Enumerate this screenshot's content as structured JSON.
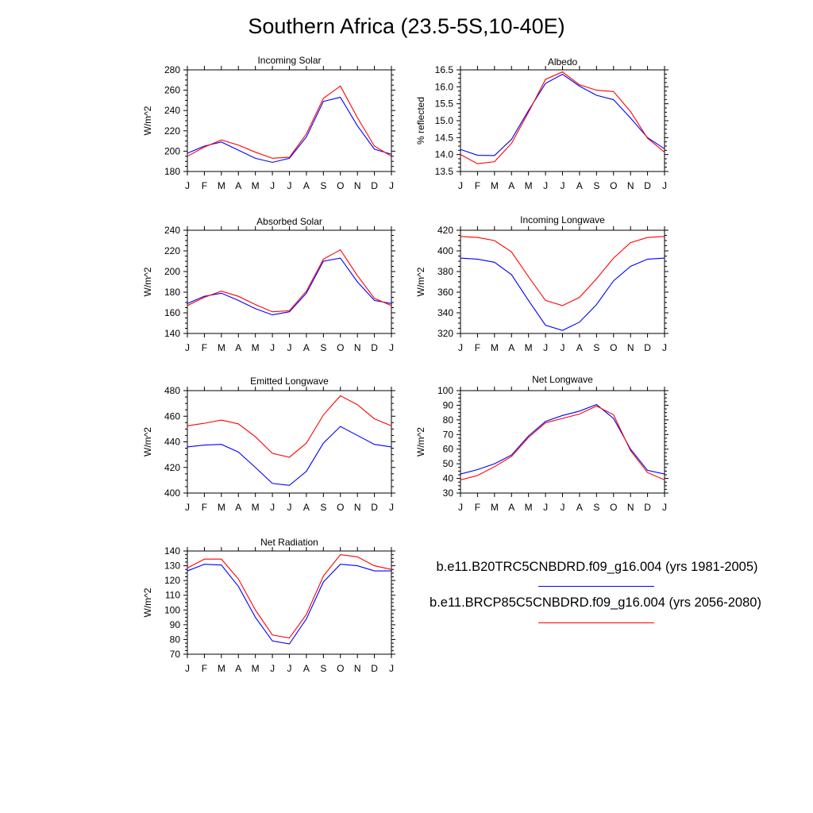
{
  "title": "Southern Africa (23.5-5S,10-40E)",
  "colors": {
    "series_1": "#0000ff",
    "series_2": "#ff0000"
  },
  "legend": {
    "series_1": "b.e11.B20TRC5CNBDRD.f09_g16.004 (yrs 1981-2005)",
    "series_2": "b.e11.BRCP85C5CNBDRD.f09_g16.004 (yrs 2056-2080)"
  },
  "chart_data": [
    {
      "type": "line",
      "title": "Incoming Solar",
      "ylabel": "W/m^2",
      "categories": [
        "J",
        "F",
        "M",
        "A",
        "M",
        "J",
        "J",
        "A",
        "S",
        "O",
        "N",
        "D",
        "J"
      ],
      "yticks": [
        180,
        200,
        220,
        240,
        260,
        280
      ],
      "ylim": [
        180,
        280
      ],
      "series": [
        {
          "name": "b.e11.B20TRC5CNBDRD.f09_g16.004 (yrs 1981-2005)",
          "color": "#0000ff",
          "values": [
            198,
            205,
            209,
            201,
            193,
            189,
            193,
            214,
            249,
            253,
            225,
            202,
            197
          ]
        },
        {
          "name": "b.e11.BRCP85C5CNBDRD.f09_g16.004 (yrs 2056-2080)",
          "color": "#ff0000",
          "values": [
            195,
            204,
            211,
            206,
            199,
            193,
            194,
            217,
            252,
            264,
            233,
            205,
            195
          ]
        }
      ]
    },
    {
      "type": "line",
      "title": "Albedo",
      "ylabel": "% reflected",
      "categories": [
        "J",
        "F",
        "M",
        "A",
        "M",
        "J",
        "J",
        "A",
        "S",
        "O",
        "N",
        "D",
        "J"
      ],
      "yticks": [
        "13.5",
        "14.0",
        "14.5",
        "15.0",
        "15.5",
        "16.0",
        "16.5"
      ],
      "ylim": [
        13.5,
        16.5
      ],
      "series": [
        {
          "name": "b.e11.B20TRC5CNBDRD.f09_g16.004 (yrs 1981-2005)",
          "color": "#0000ff",
          "values": [
            14.15,
            13.98,
            13.97,
            14.45,
            15.3,
            16.1,
            16.37,
            16.02,
            15.75,
            15.62,
            15.08,
            14.5,
            14.17
          ]
        },
        {
          "name": "b.e11.BRCP85C5CNBDRD.f09_g16.004 (yrs 2056-2080)",
          "color": "#ff0000",
          "values": [
            14.0,
            13.73,
            13.79,
            14.33,
            15.25,
            16.22,
            16.44,
            16.06,
            15.9,
            15.86,
            15.27,
            14.48,
            14.07
          ]
        }
      ]
    },
    {
      "type": "line",
      "title": "Absorbed Solar",
      "ylabel": "W/m^2",
      "categories": [
        "J",
        "F",
        "M",
        "A",
        "M",
        "J",
        "J",
        "A",
        "S",
        "O",
        "N",
        "D",
        "J"
      ],
      "yticks": [
        140,
        160,
        180,
        200,
        220,
        240
      ],
      "ylim": [
        140,
        240
      ],
      "series": [
        {
          "name": "b.e11.B20TRC5CNBDRD.f09_g16.004 (yrs 1981-2005)",
          "color": "#0000ff",
          "values": [
            169,
            176,
            179,
            172,
            164,
            158,
            161,
            179,
            210,
            213,
            190,
            172,
            169
          ]
        },
        {
          "name": "b.e11.BRCP85C5CNBDRD.f09_g16.004 (yrs 2056-2080)",
          "color": "#ff0000",
          "values": [
            167,
            175,
            181,
            176,
            168,
            161,
            162,
            181,
            212,
            221,
            196,
            174,
            167
          ]
        }
      ]
    },
    {
      "type": "line",
      "title": "Incoming Longwave",
      "ylabel": "W/m^2",
      "categories": [
        "J",
        "F",
        "M",
        "A",
        "M",
        "J",
        "J",
        "A",
        "S",
        "O",
        "N",
        "D",
        "J"
      ],
      "yticks": [
        320,
        340,
        360,
        380,
        400,
        420
      ],
      "ylim": [
        320,
        420
      ],
      "series": [
        {
          "name": "b.e11.B20TRC5CNBDRD.f09_g16.004 (yrs 1981-2005)",
          "color": "#0000ff",
          "values": [
            393,
            392,
            389,
            377,
            352,
            328,
            323,
            331,
            348,
            371,
            385,
            392,
            393
          ]
        },
        {
          "name": "b.e11.BRCP85C5CNBDRD.f09_g16.004 (yrs 2056-2080)",
          "color": "#ff0000",
          "values": [
            414,
            413,
            410,
            399,
            375,
            352,
            347,
            355,
            373,
            393,
            408,
            413,
            414
          ]
        }
      ]
    },
    {
      "type": "line",
      "title": "Emitted Longwave",
      "ylabel": "W/m^2",
      "categories": [
        "J",
        "F",
        "M",
        "A",
        "M",
        "J",
        "J",
        "A",
        "S",
        "O",
        "N",
        "D",
        "J"
      ],
      "yticks": [
        400,
        420,
        440,
        460,
        480
      ],
      "ylim": [
        400,
        480
      ],
      "series": [
        {
          "name": "b.e11.B20TRC5CNBDRD.f09_g16.004 (yrs 1981-2005)",
          "color": "#0000ff",
          "values": [
            436,
            437.5,
            438,
            432,
            420,
            407.5,
            406,
            417,
            439,
            452,
            445,
            438,
            436
          ]
        },
        {
          "name": "b.e11.BRCP85C5CNBDRD.f09_g16.004 (yrs 2056-2080)",
          "color": "#ff0000",
          "values": [
            452.5,
            454.5,
            457,
            454,
            444,
            431,
            428,
            439,
            461,
            476,
            469,
            458,
            452.5
          ]
        }
      ]
    },
    {
      "type": "line",
      "title": "Net Longwave",
      "ylabel": "W/m^2",
      "categories": [
        "J",
        "F",
        "M",
        "A",
        "M",
        "J",
        "J",
        "A",
        "S",
        "O",
        "N",
        "D",
        "J"
      ],
      "yticks": [
        30,
        40,
        50,
        60,
        70,
        80,
        90,
        100
      ],
      "ylim": [
        30,
        100
      ],
      "series": [
        {
          "name": "b.e11.B20TRC5CNBDRD.f09_g16.004 (yrs 1981-2005)",
          "color": "#0000ff",
          "values": [
            43,
            46,
            50,
            56,
            69,
            79,
            83,
            86,
            90.5,
            81,
            60,
            45.5,
            43
          ]
        },
        {
          "name": "b.e11.BRCP85C5CNBDRD.f09_g16.004 (yrs 2056-2080)",
          "color": "#ff0000",
          "values": [
            39,
            42,
            48,
            55,
            68,
            78,
            81,
            84,
            89.5,
            83.5,
            59,
            44,
            39
          ]
        }
      ]
    },
    {
      "type": "line",
      "title": "Net Radiation",
      "ylabel": "W/m^2",
      "categories": [
        "J",
        "F",
        "M",
        "A",
        "M",
        "J",
        "J",
        "A",
        "S",
        "O",
        "N",
        "D",
        "J"
      ],
      "yticks": [
        70,
        80,
        90,
        100,
        110,
        120,
        130,
        140
      ],
      "ylim": [
        70,
        140
      ],
      "series": [
        {
          "name": "b.e11.B20TRC5CNBDRD.f09_g16.004 (yrs 1981-2005)",
          "color": "#0000ff",
          "values": [
            126.5,
            131,
            130.5,
            116,
            95,
            79,
            77,
            94,
            119,
            131,
            130,
            126.5,
            126.5
          ]
        },
        {
          "name": "b.e11.BRCP85C5CNBDRD.f09_g16.004 (yrs 2056-2080)",
          "color": "#ff0000",
          "values": [
            128.5,
            134.5,
            134.5,
            121,
            100,
            83,
            81,
            97,
            123,
            137.5,
            136,
            130,
            127.5
          ]
        }
      ]
    }
  ]
}
